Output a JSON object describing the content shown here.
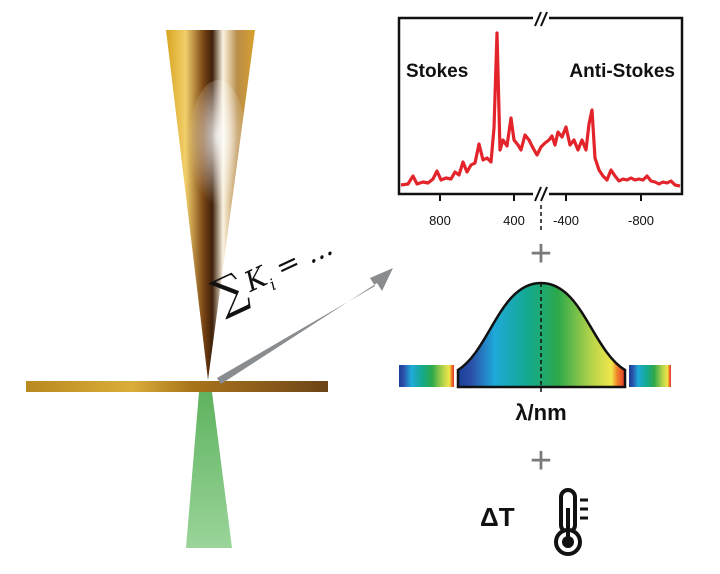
{
  "spectrum": {
    "stokes_label": "Stokes",
    "anti_stokes_label": "Anti-Stokes",
    "break_mark": "//",
    "tick_labels": [
      "800",
      "400",
      "-400",
      "-800"
    ]
  },
  "sum_formula": {
    "symbol": "∑",
    "term": "K",
    "subscript": "i",
    "rest": "= ..."
  },
  "plus_sign": "+",
  "emission": {
    "axis_label": "λ/nm"
  },
  "temperature": {
    "label": "ΔT",
    "icon": "thermometer-icon"
  },
  "colors": {
    "tip_gold": "#c9a227",
    "tip_dark": "#6b3a12",
    "substrate": "#b08a2c",
    "laser_green": "#7bc47b",
    "arrow_gray": "#8a8d90",
    "spectrum_red": "#e3242b",
    "plus_gray": "#7a7a7a"
  }
}
